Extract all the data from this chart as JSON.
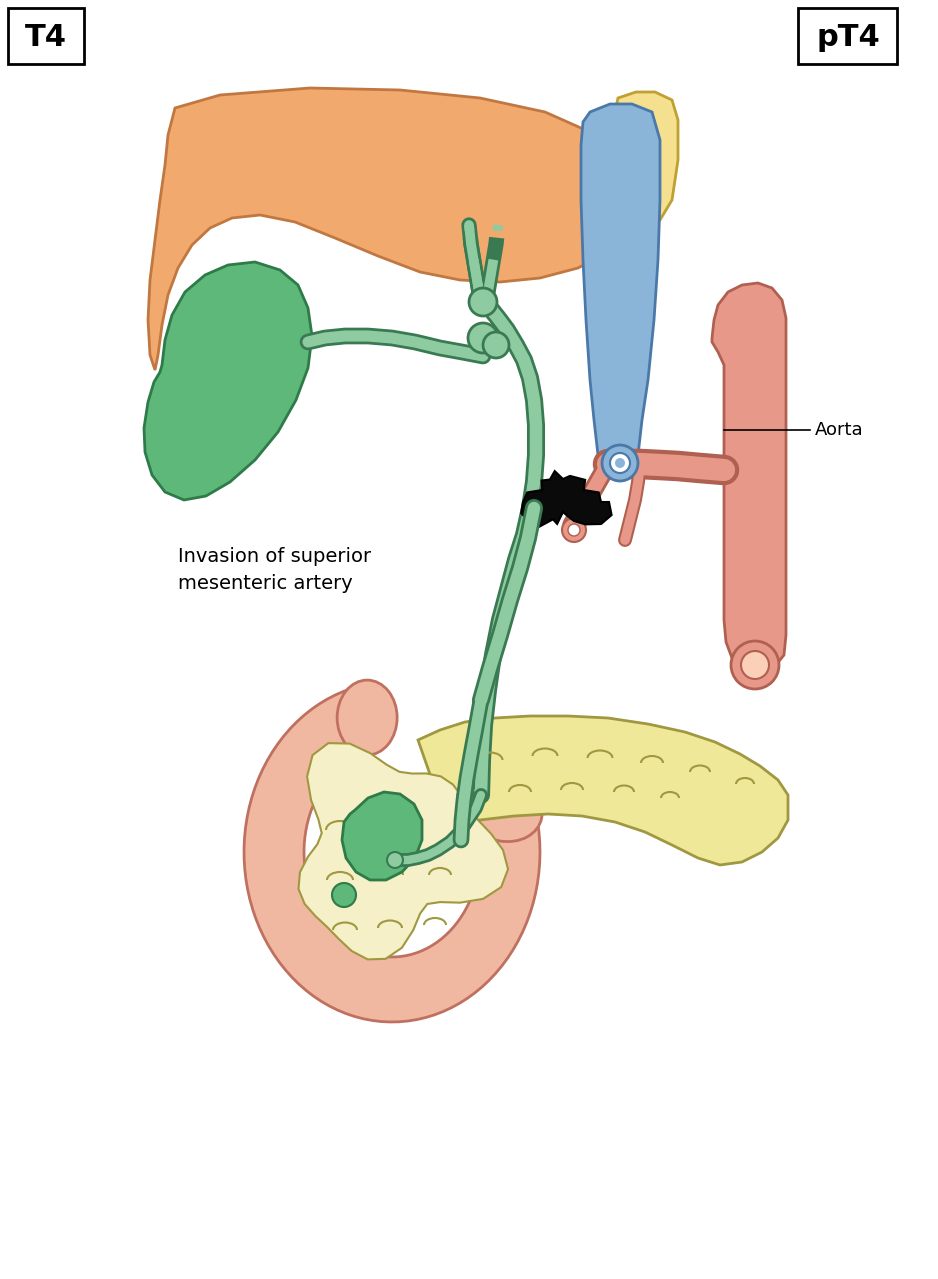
{
  "bg_color": "#ffffff",
  "label_T4": "T4",
  "label_pT4": "pT4",
  "label_invasion": "Invasion of superior\nmesenteric artery",
  "label_aorta": "Aorta",
  "colors": {
    "liver_fill": "#F2A96E",
    "liver_stroke": "#C07840",
    "gallbladder_fill": "#5DB87A",
    "gallbladder_stroke": "#2E7A48",
    "bile_duct_fill": "#8ECBA0",
    "bile_duct_stroke": "#3A7A52",
    "portal_vein_fill": "#8BB5D8",
    "portal_vein_stroke": "#4A78A8",
    "aorta_fill": "#E89888",
    "aorta_stroke": "#B06050",
    "tumor_fill": "#0A0A0A",
    "tumor_stroke": "#000000",
    "pancreas_fill": "#EFE898",
    "pancreas_stroke": "#A09840",
    "pancreas_head_fill": "#F5F0C8",
    "pancreas_head_stroke": "#A09840",
    "duodenum_fill": "#F0B8A0",
    "duodenum_stroke": "#C07060",
    "duodenum_inner": "#F8D0C0",
    "spine_fill": "#F5E090",
    "spine_stroke": "#C0A030"
  }
}
